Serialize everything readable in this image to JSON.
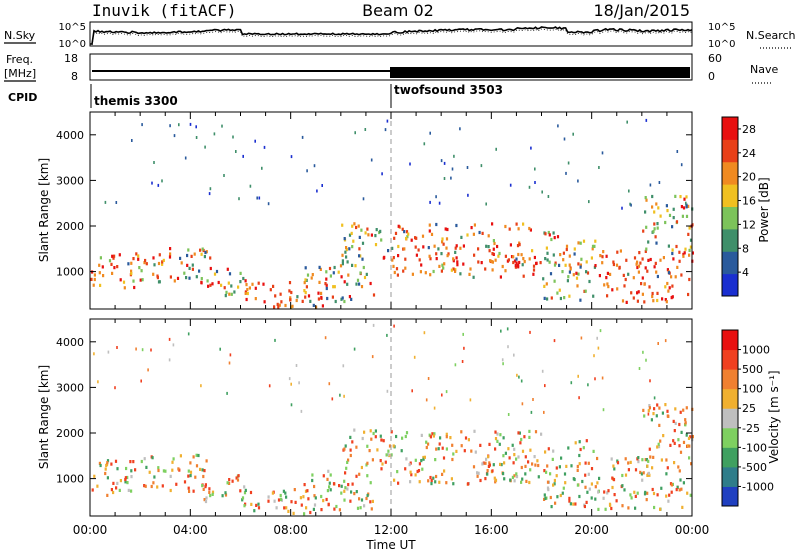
{
  "header": {
    "station": "Inuvik (fitACF)",
    "beam": "Beam 02",
    "date": "18/Jan/2015"
  },
  "sky_panel": {
    "left_label": "N.Sky",
    "right_label": "N.Search",
    "left_ticks": [
      "10^5",
      "10^0"
    ],
    "right_ticks": [
      "10^5",
      "10^0"
    ]
  },
  "freq_panel": {
    "left_label_1": "Freq.",
    "left_label_2": "[MHz]",
    "right_label": "Nave",
    "left_ticks": [
      "18",
      "8"
    ],
    "right_ticks": [
      "60",
      "0"
    ]
  },
  "cpid": {
    "label": "CPID",
    "segments": [
      {
        "name": "themis 3300",
        "start_hour": 0
      },
      {
        "name": "twofsound 3503",
        "start_hour": 12
      }
    ]
  },
  "chart_data": [
    {
      "type": "heatmap",
      "title": "",
      "xlabel": "",
      "ylabel": "Slant Range [km]",
      "ylim": [
        180,
        4500
      ],
      "xlim": [
        0,
        24
      ],
      "yticks": [
        "1000",
        "2000",
        "3000",
        "4000"
      ],
      "colorbar": {
        "label": "Power [dB]",
        "ticks": [
          "4",
          "8",
          "12",
          "16",
          "20",
          "24",
          "28"
        ],
        "range": [
          0,
          30
        ],
        "colors": [
          "#1a2fd0",
          "#2a5a9c",
          "#3f8f6a",
          "#7cc35a",
          "#f0c020",
          "#f08a20",
          "#e84018",
          "#e81010"
        ]
      }
    },
    {
      "type": "heatmap",
      "title": "",
      "xlabel": "Time UT",
      "ylabel": "Slant Range [km]",
      "ylim": [
        180,
        4500
      ],
      "xlim": [
        0,
        24
      ],
      "xticks": [
        "00:00",
        "04:00",
        "08:00",
        "12:00",
        "16:00",
        "20:00",
        "00:00"
      ],
      "yticks": [
        "1000",
        "2000",
        "3000",
        "4000"
      ],
      "colorbar": {
        "label": "Velocity [m s⁻¹]",
        "ticks": [
          "1000",
          "500",
          "100",
          "25",
          "-25",
          "-100",
          "-500",
          "-1000"
        ],
        "colors": [
          "#2040c0",
          "#2f7d8a",
          "#3fa060",
          "#7ed060",
          "#bfbfbf",
          "#f0b030",
          "#f08030",
          "#f04020",
          "#e81010"
        ]
      }
    }
  ]
}
